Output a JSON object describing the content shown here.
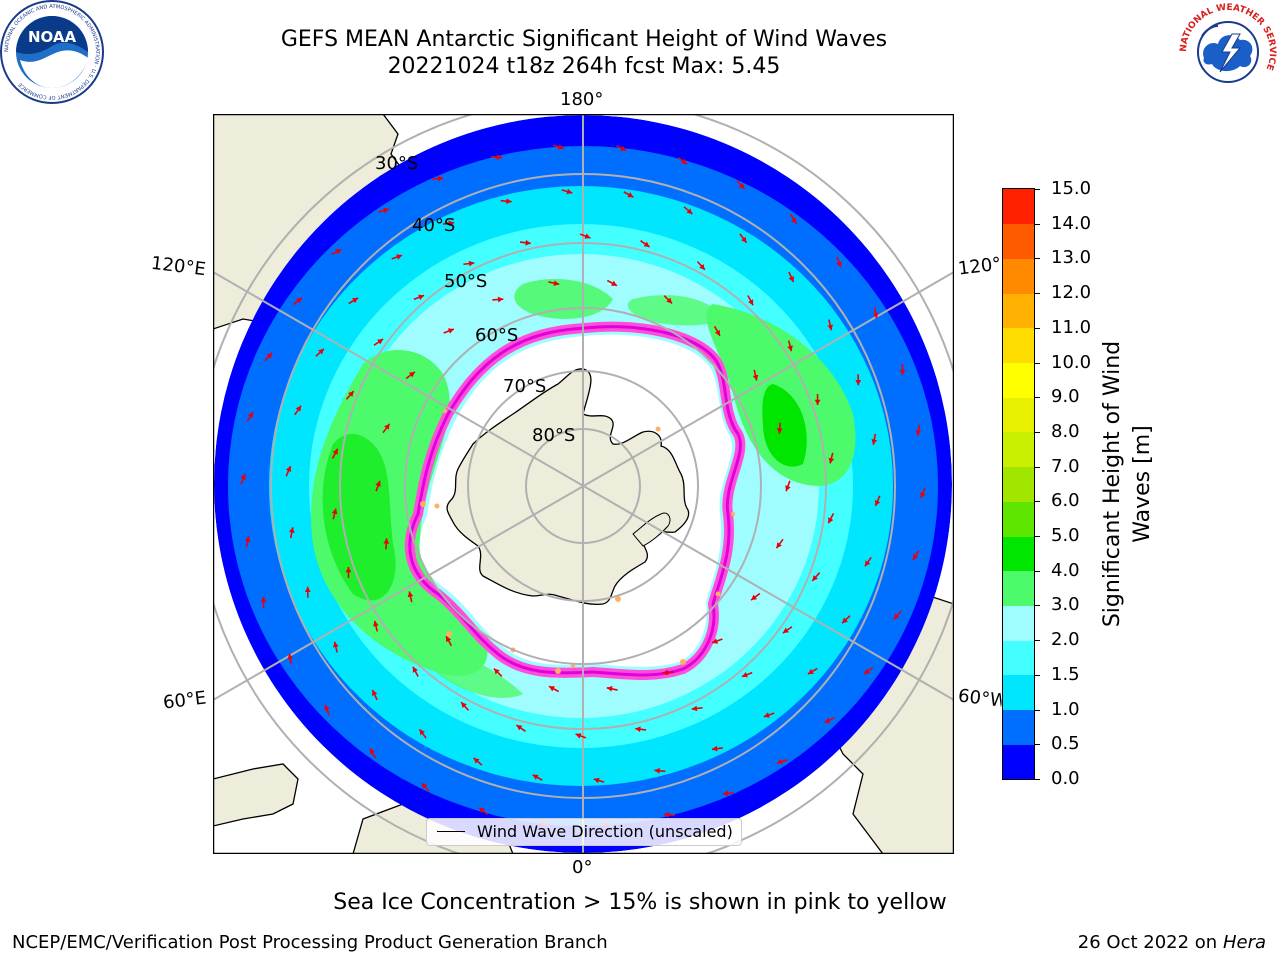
{
  "header": {
    "title_line1": "GEFS MEAN Antarctic Significant Height of Wind Waves",
    "title_line2": "20221024 t18z 264h fcst   Max: 5.45"
  },
  "logos": {
    "noaa_text": "NOAA",
    "noaa_ring_text": "NATIONAL OCEANIC AND ATMOSPHERIC ADMINISTRATION · U.S. DEPARTMENT OF COMMERCE",
    "nws_ring_text": "NATIONAL WEATHER SERVICE"
  },
  "map": {
    "projection": "south-polar-stereographic",
    "longitude_labels": {
      "top": "180°",
      "bottom": "0°",
      "upper_left": "120°E",
      "upper_right": "120°W",
      "lower_left": "60°E",
      "lower_right": "60°W"
    },
    "latitude_labels": [
      "30°S",
      "40°S",
      "50°S",
      "60°S",
      "70°S",
      "80°S"
    ],
    "legend": "Wind Wave Direction (unscaled)",
    "colors": {
      "land": "#eeecda",
      "ice_free_open": "#ffffff",
      "sea_ice_pink": "#ff4fd8",
      "sea_ice_magenta": "#e000e0",
      "sea_ice_orange": "#ffb060",
      "arrow": "#e8000b",
      "grid": "#b0b0b0"
    }
  },
  "colorbar": {
    "label": "Significant Height of Wind Waves [m]",
    "ticks": [
      "0.0",
      "0.5",
      "1.0",
      "1.5",
      "2.0",
      "3.0",
      "4.0",
      "5.0",
      "6.0",
      "7.0",
      "8.0",
      "9.0",
      "10.0",
      "11.0",
      "12.0",
      "13.0",
      "14.0",
      "15.0"
    ],
    "colors": [
      "#0000ff",
      "#006fff",
      "#00e6ff",
      "#44ffff",
      "#9ffcff",
      "#4dfa6c",
      "#00e600",
      "#5ee600",
      "#a2e600",
      "#c8f000",
      "#e6f000",
      "#ffff00",
      "#ffdc00",
      "#ffb000",
      "#ff8a00",
      "#ff5a00",
      "#ff2000"
    ]
  },
  "caption": "Sea Ice Concentration > 15% is shown in pink to yellow",
  "footer": {
    "left": "NCEP/EMC/Verification Post Processing Product Generation Branch",
    "right_prefix": "26 Oct 2022 on ",
    "right_machine": "Hera"
  }
}
